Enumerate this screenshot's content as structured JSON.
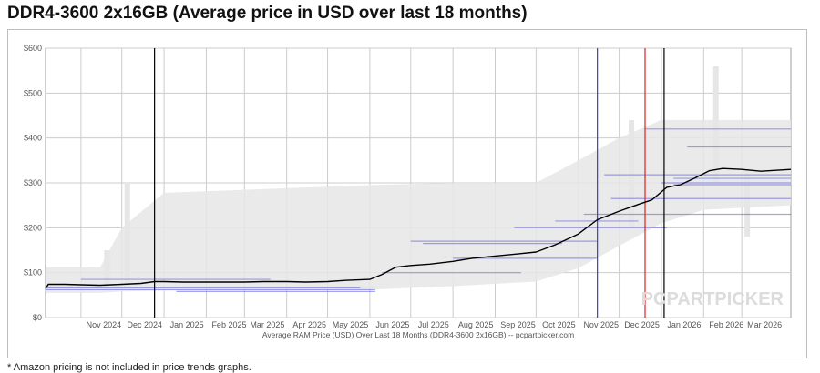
{
  "page": {
    "title": "DDR4-3600 2x16GB (Average price in USD over last 18 months)",
    "footnote": "* Amazon pricing is not included in price trends graphs."
  },
  "chart_data": {
    "type": "line",
    "title": "DDR4-3600 2x16GB (Average price in USD over last 18 months)",
    "xlabel": "Average RAM Price (USD) Over Last 18 Months (DDR4-3600 2x16GB) -- pcpartpicker.com",
    "ylabel": "",
    "watermark": "PCPARTPICKER",
    "x_range": [
      "2024-10-06",
      "2026-04-06"
    ],
    "ylim": [
      0,
      600
    ],
    "y_ticks": [
      {
        "value": 0,
        "label": "$0"
      },
      {
        "value": 100,
        "label": "$100"
      },
      {
        "value": 200,
        "label": "$200"
      },
      {
        "value": 300,
        "label": "$300"
      },
      {
        "value": 400,
        "label": "$400"
      },
      {
        "value": 500,
        "label": "$500"
      },
      {
        "value": 600,
        "label": "$600"
      }
    ],
    "x_ticks": [
      {
        "date": "2024-11-01",
        "label": "Nov 2024"
      },
      {
        "date": "2024-12-01",
        "label": "Dec 2024"
      },
      {
        "date": "2025-01-01",
        "label": "Jan 2025"
      },
      {
        "date": "2025-02-01",
        "label": "Feb 2025"
      },
      {
        "date": "2025-03-01",
        "label": "Mar 2025"
      },
      {
        "date": "2025-04-01",
        "label": "Apr 2025"
      },
      {
        "date": "2025-05-01",
        "label": "May 2025"
      },
      {
        "date": "2025-06-01",
        "label": "Jun 2025"
      },
      {
        "date": "2025-07-01",
        "label": "Jul 2025"
      },
      {
        "date": "2025-08-01",
        "label": "Aug 2025"
      },
      {
        "date": "2025-09-01",
        "label": "Sep 2025"
      },
      {
        "date": "2025-10-01",
        "label": "Oct 2025"
      },
      {
        "date": "2025-11-01",
        "label": "Nov 2025"
      },
      {
        "date": "2025-12-01",
        "label": "Dec 2025"
      },
      {
        "date": "2026-01-01",
        "label": "Jan 2026"
      },
      {
        "date": "2026-02-01",
        "label": "Feb 2026"
      },
      {
        "date": "2026-03-01",
        "label": "Mar 2026"
      }
    ],
    "grid": true,
    "colors": {
      "average_line": "#000000",
      "price_band": "#e6e6e6",
      "retailer_lines": "#5a5ad8",
      "vline_black": "#000000",
      "vline_blue": "#3b3bdc",
      "vline_red": "#e02020",
      "grid": "#cccccc"
    },
    "vertical_markers": [
      {
        "date": "2024-12-25",
        "color": "#000000"
      },
      {
        "date": "2025-11-15",
        "color": "#3b3bdc"
      },
      {
        "date": "2025-12-20",
        "color": "#e02020"
      },
      {
        "date": "2026-01-03",
        "color": "#000000"
      }
    ],
    "series": [
      {
        "kind": "average",
        "points": [
          [
            "2024-10-06",
            64
          ],
          [
            "2024-10-08",
            74
          ],
          [
            "2024-10-20",
            74
          ],
          [
            "2024-11-01",
            73
          ],
          [
            "2024-11-15",
            72
          ],
          [
            "2024-12-01",
            74
          ],
          [
            "2024-12-15",
            76
          ],
          [
            "2024-12-25",
            80
          ],
          [
            "2025-01-01",
            80
          ],
          [
            "2025-01-15",
            79
          ],
          [
            "2025-02-01",
            79
          ],
          [
            "2025-02-15",
            79
          ],
          [
            "2025-03-01",
            79
          ],
          [
            "2025-03-15",
            80
          ],
          [
            "2025-04-01",
            80
          ],
          [
            "2025-04-15",
            79
          ],
          [
            "2025-05-01",
            80
          ],
          [
            "2025-05-15",
            83
          ],
          [
            "2025-06-01",
            85
          ],
          [
            "2025-06-10",
            96
          ],
          [
            "2025-06-20",
            112
          ],
          [
            "2025-07-01",
            116
          ],
          [
            "2025-07-15",
            119
          ],
          [
            "2025-08-01",
            125
          ],
          [
            "2025-08-15",
            132
          ],
          [
            "2025-09-01",
            137
          ],
          [
            "2025-09-15",
            141
          ],
          [
            "2025-10-01",
            146
          ],
          [
            "2025-10-15",
            162
          ],
          [
            "2025-11-01",
            186
          ],
          [
            "2025-11-15",
            218
          ],
          [
            "2025-12-01",
            237
          ],
          [
            "2025-12-15",
            252
          ],
          [
            "2025-12-25",
            262
          ],
          [
            "2026-01-05",
            290
          ],
          [
            "2026-01-15",
            296
          ],
          [
            "2026-01-25",
            310
          ],
          [
            "2026-02-05",
            327
          ],
          [
            "2026-02-15",
            332
          ],
          [
            "2026-03-01",
            330
          ],
          [
            "2026-03-15",
            326
          ],
          [
            "2026-04-06",
            330
          ]
        ]
      },
      {
        "kind": "range",
        "points": [
          [
            "2024-10-06",
            55,
            112
          ],
          [
            "2024-11-15",
            55,
            112
          ],
          [
            "2024-12-01",
            58,
            200
          ],
          [
            "2025-01-01",
            60,
            278
          ],
          [
            "2025-04-01",
            60,
            288
          ],
          [
            "2025-06-01",
            62,
            295
          ],
          [
            "2025-08-01",
            70,
            300
          ],
          [
            "2025-10-01",
            80,
            300
          ],
          [
            "2025-11-01",
            110,
            350
          ],
          [
            "2025-12-01",
            160,
            400
          ],
          [
            "2026-01-01",
            210,
            440
          ],
          [
            "2026-02-01",
            240,
            440
          ],
          [
            "2026-04-06",
            250,
            440
          ]
        ]
      },
      {
        "kind": "spikes",
        "points": [
          [
            "2024-11-20",
            65,
            150
          ],
          [
            "2024-12-05",
            70,
            300
          ],
          [
            "2025-12-10",
            200,
            440
          ],
          [
            "2026-02-10",
            300,
            560
          ],
          [
            "2026-03-05",
            180,
            330
          ]
        ]
      },
      {
        "kind": "retailer_segments",
        "segments": [
          [
            "2024-10-06",
            "2025-06-05",
            62
          ],
          [
            "2024-10-06",
            "2025-05-25",
            66
          ],
          [
            "2025-01-10",
            "2025-06-05",
            58
          ],
          [
            "2024-11-01",
            "2025-03-20",
            85
          ],
          [
            "2025-06-10",
            "2025-09-20",
            100
          ],
          [
            "2025-07-01",
            "2025-11-15",
            170
          ],
          [
            "2025-07-10",
            "2025-10-20",
            165
          ],
          [
            "2025-08-01",
            "2025-11-15",
            132
          ],
          [
            "2025-09-15",
            "2026-01-05",
            200
          ],
          [
            "2025-11-05",
            "2026-04-06",
            230
          ],
          [
            "2025-11-25",
            "2026-04-06",
            265
          ],
          [
            "2026-01-01",
            "2026-04-06",
            300
          ],
          [
            "2026-01-10",
            "2026-04-06",
            310
          ],
          [
            "2026-01-10",
            "2026-04-06",
            296
          ],
          [
            "2025-12-20",
            "2026-04-06",
            420
          ],
          [
            "2026-01-20",
            "2026-04-06",
            380
          ],
          [
            "2025-11-20",
            "2026-04-06",
            318
          ],
          [
            "2025-10-15",
            "2025-12-15",
            215
          ]
        ]
      }
    ]
  }
}
